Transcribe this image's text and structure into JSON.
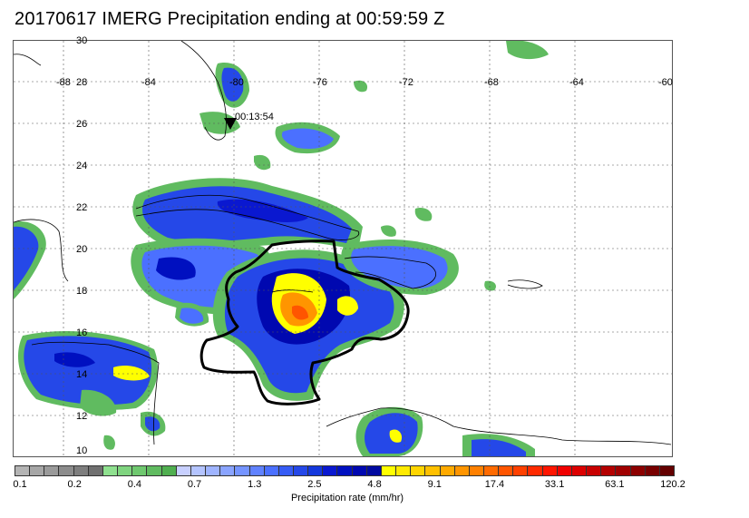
{
  "title": "20170617 IMERG Precipitation ending at 00:59:59 Z",
  "map": {
    "lon_labels": [
      "-88",
      "-84",
      "-80",
      "-76",
      "-72",
      "-68",
      "-64",
      "-60"
    ],
    "lat_labels": [
      "30",
      "28",
      "26",
      "24",
      "22",
      "20",
      "18",
      "16",
      "14",
      "12",
      "10"
    ],
    "marker_label": "00:13:54"
  },
  "colorbar": {
    "colors": [
      "#b4b4b4",
      "#a6a6a6",
      "#9a9a9a",
      "#8c8c8c",
      "#7e7e7e",
      "#707070",
      "#8fe08f",
      "#7fd47f",
      "#6fc86f",
      "#60bb60",
      "#50af50",
      "#c8d0ff",
      "#b4c4ff",
      "#9fb4ff",
      "#8aa4ff",
      "#7594ff",
      "#6082ff",
      "#4b70ff",
      "#365cf5",
      "#2548e8",
      "#1438dc",
      "#0a18d0",
      "#0010c0",
      "#0008b0",
      "#000aa0",
      "#ffff00",
      "#ffea00",
      "#ffd500",
      "#ffc000",
      "#ffaa00",
      "#ff9500",
      "#ff8000",
      "#ff6a00",
      "#ff5500",
      "#ff4000",
      "#ff2a00",
      "#ff1500",
      "#f00000",
      "#dc0000",
      "#c80000",
      "#b40000",
      "#a00000",
      "#8c0000",
      "#780000",
      "#640000"
    ],
    "tick_labels": [
      "0.1",
      "0.2",
      "0.4",
      "0.7",
      "1.3",
      "2.5",
      "4.8",
      "9.1",
      "17.4",
      "33.1",
      "63.1",
      "120.2"
    ],
    "label": "Precipitation rate (mm/hr)"
  }
}
